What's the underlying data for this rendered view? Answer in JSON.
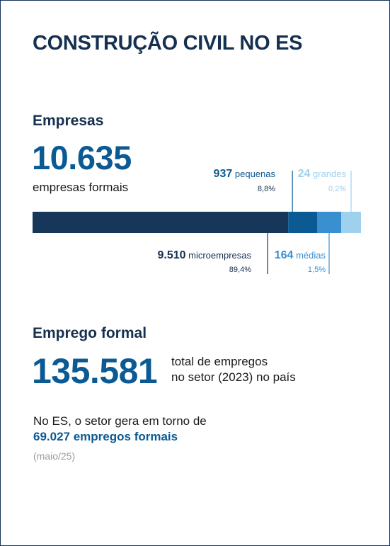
{
  "header": {
    "title": "CONSTRUÇÃO CIVIL NO ES"
  },
  "empresas": {
    "heading": "Empresas",
    "total": "10.635",
    "total_caption": "empresas formais"
  },
  "emprego": {
    "heading": "Emprego formal",
    "total": "135.581",
    "caption_line1": "total de empregos",
    "caption_line2": "no setor (2023) no país",
    "es_text": "No ES, o setor gera em torno de",
    "es_value": "69.027 empregos formais",
    "es_date": "(maio/25)"
  },
  "colors": {
    "micro": "#16365a",
    "pequenas": "#0b5a93",
    "medias": "#3a8fd0",
    "grandes": "#9fd0ee",
    "title": "#16304f"
  },
  "chart_data": {
    "type": "bar",
    "orientation": "horizontal-stacked",
    "categories": [
      "microempresas",
      "pequenas",
      "médias",
      "grandes"
    ],
    "values": [
      9510,
      937,
      164,
      24
    ],
    "value_labels": [
      "9.510",
      "937",
      "164",
      "24"
    ],
    "percent_labels": [
      "89,4%",
      "8,8%",
      "1,5%",
      "0,2%"
    ],
    "percents": [
      89.4,
      8.8,
      1.5,
      0.2
    ],
    "total": 10635
  }
}
